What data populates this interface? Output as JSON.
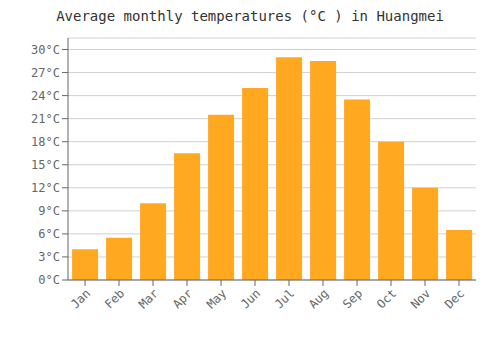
{
  "chart_data": {
    "type": "bar",
    "title": "Average monthly temperatures (°C ) in Huangmei",
    "categories": [
      "Jan",
      "Feb",
      "Mar",
      "Apr",
      "May",
      "Jun",
      "Jul",
      "Aug",
      "Sep",
      "Oct",
      "Nov",
      "Dec"
    ],
    "values": [
      4.0,
      5.5,
      10.0,
      16.5,
      21.5,
      25.0,
      29.0,
      28.5,
      23.5,
      18.0,
      12.0,
      6.5
    ],
    "color": "#FFA820",
    "ylim": [
      0,
      31.5
    ],
    "yticks": [
      {
        "value": 0,
        "label": "0°C"
      },
      {
        "value": 3,
        "label": "3°C"
      },
      {
        "value": 6,
        "label": "6°C"
      },
      {
        "value": 9,
        "label": "9°C"
      },
      {
        "value": 12,
        "label": "12°C"
      },
      {
        "value": 15,
        "label": "15°C"
      },
      {
        "value": 18,
        "label": "18°C"
      },
      {
        "value": 21,
        "label": "21°C"
      },
      {
        "value": 24,
        "label": "24°C"
      },
      {
        "value": 27,
        "label": "27°C"
      },
      {
        "value": 30,
        "label": "30°C"
      }
    ],
    "grid": true
  }
}
